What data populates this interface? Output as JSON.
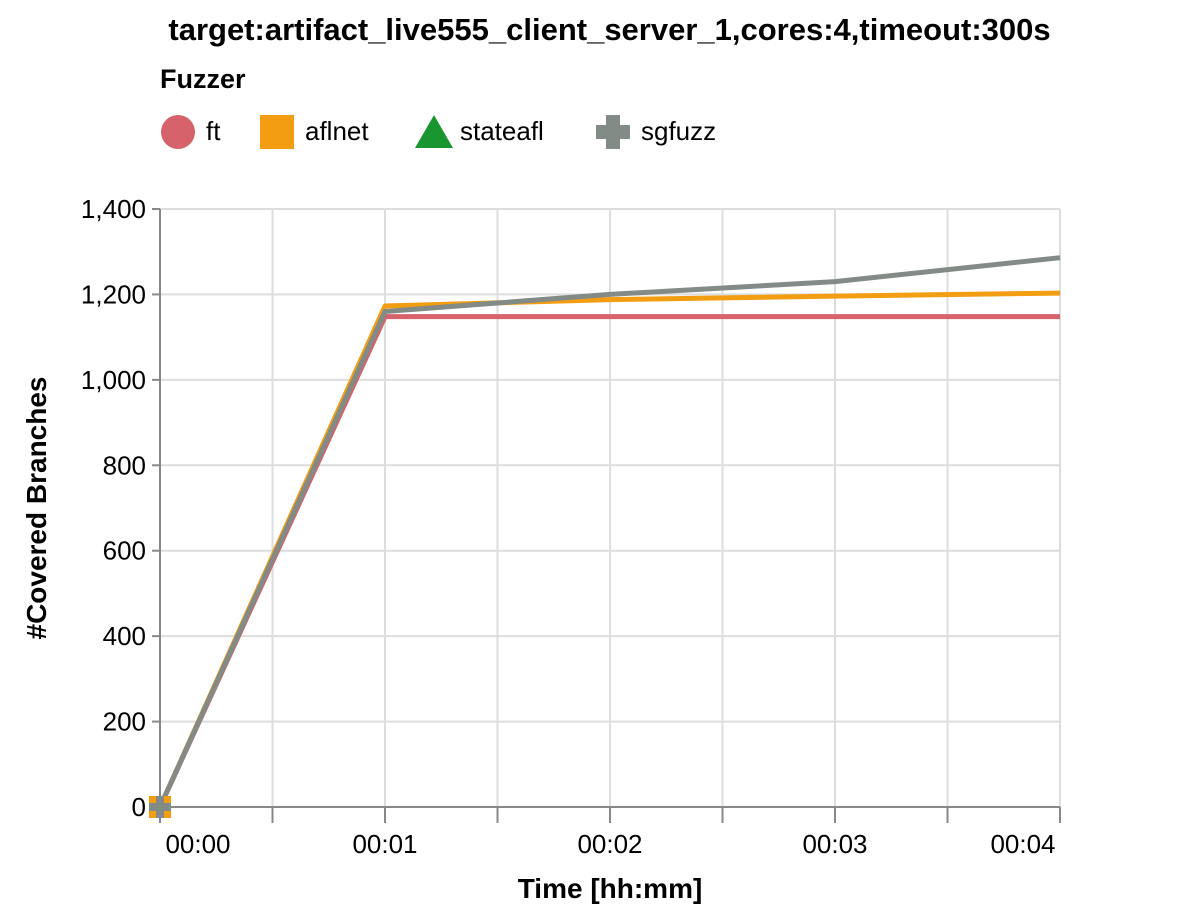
{
  "chart_data": {
    "type": "line",
    "title": "target:artifact_live555_client_server_1,cores:4,timeout:300s",
    "xlabel": "Time [hh:mm]",
    "ylabel": "#Covered Branches",
    "legend_title": "Fuzzer",
    "legend_position": "top-left",
    "grid": true,
    "xlim": [
      0,
      4
    ],
    "ylim": [
      0,
      1400
    ],
    "x_ticks": [
      0,
      1,
      2,
      3,
      4
    ],
    "x_tick_labels": [
      "00:00",
      "00:01",
      "00:02",
      "00:03",
      "00:04"
    ],
    "x_minor_ticks": [
      0.5,
      1.5,
      2.5,
      3.5
    ],
    "y_ticks": [
      0,
      200,
      400,
      600,
      800,
      1000,
      1200,
      1400
    ],
    "y_tick_labels": [
      "0",
      "200",
      "400",
      "600",
      "800",
      "1,000",
      "1,200",
      "1,400"
    ],
    "series": [
      {
        "name": "ft",
        "color": "#d6626b",
        "marker": "circle",
        "x": [
          0,
          1,
          2,
          3,
          4
        ],
        "y": [
          0,
          1148,
          1148,
          1148,
          1148
        ]
      },
      {
        "name": "aflnet",
        "color": "#f29d12",
        "marker": "square",
        "x": [
          0,
          1,
          2,
          3,
          4
        ],
        "y": [
          0,
          1173,
          1188,
          1196,
          1203
        ]
      },
      {
        "name": "stateafl",
        "color": "#1a9630",
        "marker": "triangle",
        "x": [],
        "y": []
      },
      {
        "name": "sgfuzz",
        "color": "#838b87",
        "marker": "cross",
        "x": [
          0,
          1,
          2,
          3,
          4
        ],
        "y": [
          0,
          1160,
          1200,
          1230,
          1286
        ]
      }
    ]
  }
}
